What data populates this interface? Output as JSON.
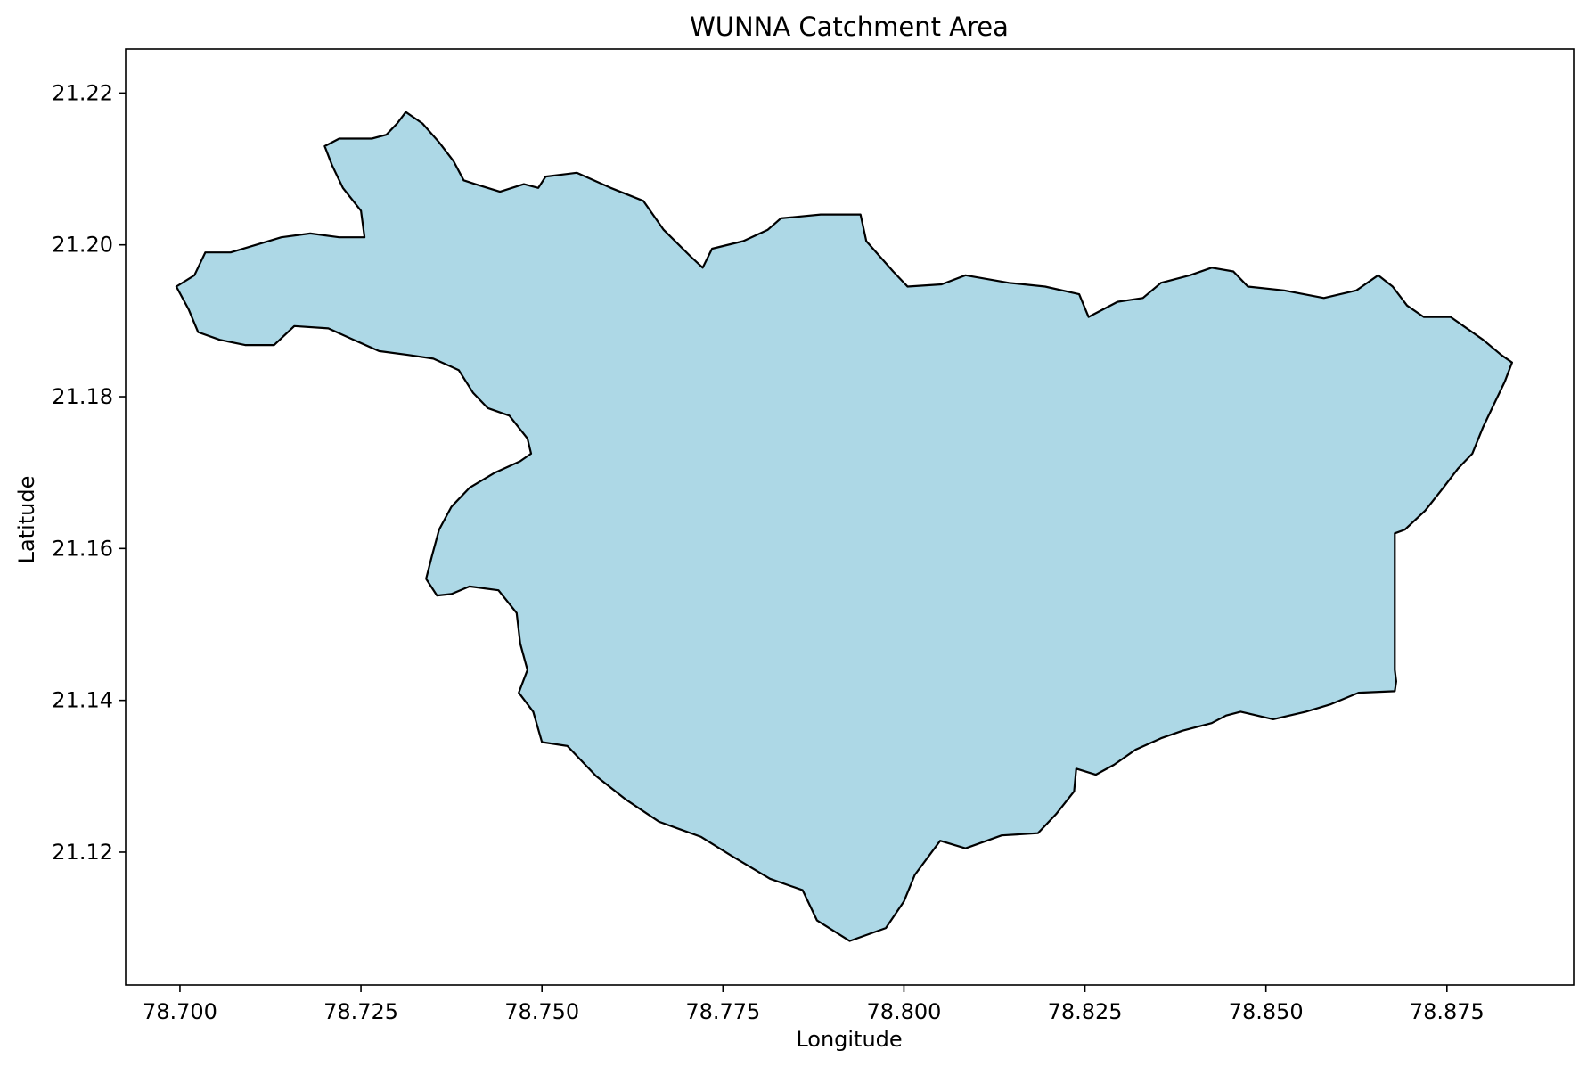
{
  "chart_data": {
    "type": "map",
    "title": "WUNNA Catchment Area",
    "xlabel": "Longitude",
    "ylabel": "Latitude",
    "xlim": [
      78.6925,
      78.8925
    ],
    "ylim": [
      21.1025,
      21.2258
    ],
    "x_ticks": [
      {
        "value": 78.7,
        "label": "78.700"
      },
      {
        "value": 78.725,
        "label": "78.725"
      },
      {
        "value": 78.75,
        "label": "78.750"
      },
      {
        "value": 78.775,
        "label": "78.775"
      },
      {
        "value": 78.8,
        "label": "78.800"
      },
      {
        "value": 78.825,
        "label": "78.825"
      },
      {
        "value": 78.85,
        "label": "78.850"
      },
      {
        "value": 78.875,
        "label": "78.875"
      }
    ],
    "y_ticks": [
      {
        "value": 21.12,
        "label": "21.12"
      },
      {
        "value": 21.14,
        "label": "21.14"
      },
      {
        "value": 21.16,
        "label": "21.16"
      },
      {
        "value": 21.18,
        "label": "21.18"
      },
      {
        "value": 21.2,
        "label": "21.20"
      },
      {
        "value": 21.22,
        "label": "21.22"
      }
    ],
    "grid": false,
    "fill_color": "#add8e6",
    "edge_color": "#000000",
    "polygon": [
      [
        78.7312,
        21.2175
      ],
      [
        78.7335,
        21.216
      ],
      [
        78.7358,
        21.2135
      ],
      [
        78.7378,
        21.211
      ],
      [
        78.7392,
        21.2085
      ],
      [
        78.7408,
        21.208
      ],
      [
        78.7442,
        21.207
      ],
      [
        78.7475,
        21.208
      ],
      [
        78.7495,
        21.2075
      ],
      [
        78.7505,
        21.209
      ],
      [
        78.7548,
        21.2095
      ],
      [
        78.7595,
        21.2075
      ],
      [
        78.764,
        21.2058
      ],
      [
        78.7668,
        21.202
      ],
      [
        78.7705,
        21.1985
      ],
      [
        78.7722,
        21.197
      ],
      [
        78.7735,
        21.1995
      ],
      [
        78.7778,
        21.2005
      ],
      [
        78.7812,
        21.202
      ],
      [
        78.783,
        21.2035
      ],
      [
        78.7885,
        21.204
      ],
      [
        78.794,
        21.204
      ],
      [
        78.7948,
        21.2005
      ],
      [
        78.7985,
        21.1965
      ],
      [
        78.8005,
        21.1945
      ],
      [
        78.8052,
        21.1948
      ],
      [
        78.8085,
        21.196
      ],
      [
        78.8145,
        21.195
      ],
      [
        78.8195,
        21.1945
      ],
      [
        78.8242,
        21.1935
      ],
      [
        78.8255,
        21.1905
      ],
      [
        78.8295,
        21.1925
      ],
      [
        78.833,
        21.193
      ],
      [
        78.8355,
        21.195
      ],
      [
        78.8395,
        21.196
      ],
      [
        78.8425,
        21.197
      ],
      [
        78.8455,
        21.1965
      ],
      [
        78.8475,
        21.1945
      ],
      [
        78.8525,
        21.194
      ],
      [
        78.858,
        21.193
      ],
      [
        78.8625,
        21.194
      ],
      [
        78.8655,
        21.196
      ],
      [
        78.8675,
        21.1945
      ],
      [
        78.8695,
        21.192
      ],
      [
        78.8718,
        21.1905
      ],
      [
        78.8755,
        21.1905
      ],
      [
        78.88,
        21.1875
      ],
      [
        78.8825,
        21.1855
      ],
      [
        78.884,
        21.1845
      ],
      [
        78.883,
        21.182
      ],
      [
        78.8815,
        21.179
      ],
      [
        78.88,
        21.176
      ],
      [
        78.8785,
        21.1725
      ],
      [
        78.8765,
        21.1705
      ],
      [
        78.8745,
        21.168
      ],
      [
        78.872,
        21.165
      ],
      [
        78.8692,
        21.1625
      ],
      [
        78.8678,
        21.162
      ],
      [
        78.8678,
        21.156
      ],
      [
        78.8678,
        21.15
      ],
      [
        78.8678,
        21.144
      ],
      [
        78.868,
        21.1425
      ],
      [
        78.8678,
        21.1412
      ],
      [
        78.8628,
        21.141
      ],
      [
        78.859,
        21.1395
      ],
      [
        78.8555,
        21.1385
      ],
      [
        78.851,
        21.1375
      ],
      [
        78.8465,
        21.1385
      ],
      [
        78.8445,
        21.138
      ],
      [
        78.8425,
        21.137
      ],
      [
        78.8385,
        21.136
      ],
      [
        78.8355,
        21.135
      ],
      [
        78.832,
        21.1335
      ],
      [
        78.829,
        21.1315
      ],
      [
        78.8265,
        21.1302
      ],
      [
        78.8238,
        21.131
      ],
      [
        78.8235,
        21.128
      ],
      [
        78.821,
        21.125
      ],
      [
        78.8185,
        21.1225
      ],
      [
        78.8135,
        21.1222
      ],
      [
        78.8085,
        21.1205
      ],
      [
        78.805,
        21.1215
      ],
      [
        78.8015,
        21.117
      ],
      [
        78.8,
        21.1135
      ],
      [
        78.7975,
        21.11
      ],
      [
        78.7925,
        21.1083
      ],
      [
        78.788,
        21.111
      ],
      [
        78.786,
        21.115
      ],
      [
        78.7815,
        21.1165
      ],
      [
        78.7762,
        21.1195
      ],
      [
        78.772,
        21.122
      ],
      [
        78.7662,
        21.124
      ],
      [
        78.7615,
        21.127
      ],
      [
        78.7575,
        21.13
      ],
      [
        78.7535,
        21.134
      ],
      [
        78.75,
        21.1345
      ],
      [
        78.7488,
        21.1385
      ],
      [
        78.7468,
        21.141
      ],
      [
        78.748,
        21.144
      ],
      [
        78.747,
        21.1475
      ],
      [
        78.7465,
        21.1515
      ],
      [
        78.744,
        21.1545
      ],
      [
        78.74,
        21.155
      ],
      [
        78.7375,
        21.154
      ],
      [
        78.7355,
        21.1538
      ],
      [
        78.734,
        21.156
      ],
      [
        78.7348,
        21.159
      ],
      [
        78.7358,
        21.1625
      ],
      [
        78.7375,
        21.1655
      ],
      [
        78.74,
        21.168
      ],
      [
        78.7435,
        21.17
      ],
      [
        78.747,
        21.1715
      ],
      [
        78.7485,
        21.1725
      ],
      [
        78.748,
        21.1745
      ],
      [
        78.7455,
        21.1775
      ],
      [
        78.7425,
        21.1785
      ],
      [
        78.7405,
        21.1805
      ],
      [
        78.7385,
        21.1835
      ],
      [
        78.735,
        21.185
      ],
      [
        78.7315,
        21.1855
      ],
      [
        78.7275,
        21.186
      ],
      [
        78.724,
        21.1875
      ],
      [
        78.7205,
        21.189
      ],
      [
        78.7158,
        21.1893
      ],
      [
        78.713,
        21.1868
      ],
      [
        78.709,
        21.1868
      ],
      [
        78.7055,
        21.1875
      ],
      [
        78.7025,
        21.1885
      ],
      [
        78.7012,
        21.1915
      ],
      [
        78.6995,
        21.1945
      ],
      [
        78.702,
        21.196
      ],
      [
        78.7035,
        21.199
      ],
      [
        78.707,
        21.199
      ],
      [
        78.7105,
        21.2
      ],
      [
        78.714,
        21.201
      ],
      [
        78.718,
        21.2015
      ],
      [
        78.722,
        21.201
      ],
      [
        78.7255,
        21.201
      ],
      [
        78.725,
        21.2045
      ],
      [
        78.7225,
        21.2075
      ],
      [
        78.721,
        21.2105
      ],
      [
        78.72,
        21.213
      ],
      [
        78.722,
        21.214
      ],
      [
        78.7265,
        21.214
      ],
      [
        78.7285,
        21.2145
      ],
      [
        78.73,
        21.216
      ]
    ]
  }
}
